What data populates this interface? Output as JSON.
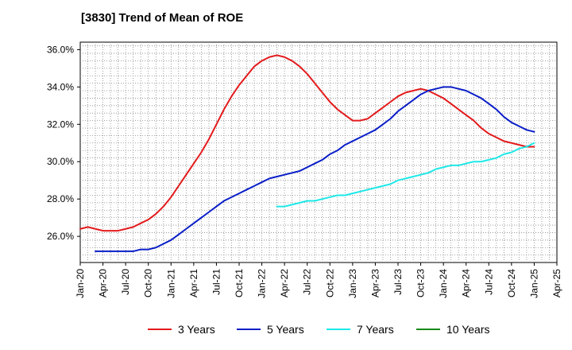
{
  "chart_data": {
    "type": "line",
    "title": "[3830]  Trend of Mean of ROE",
    "xlabel": "",
    "ylabel": "",
    "x_tick_labels": [
      "Jan-20",
      "Apr-20",
      "Jul-20",
      "Oct-20",
      "Jan-21",
      "Apr-21",
      "Jul-21",
      "Oct-21",
      "Jan-22",
      "Apr-22",
      "Jul-22",
      "Oct-22",
      "Jan-23",
      "Apr-23",
      "Jul-23",
      "Oct-23",
      "Jan-24",
      "Apr-24",
      "Jul-24",
      "Oct-24",
      "Jan-25",
      "Apr-25"
    ],
    "y_tick_labels": [
      "26.0%",
      "28.0%",
      "30.0%",
      "32.0%",
      "34.0%",
      "36.0%"
    ],
    "y_ticks": [
      26,
      28,
      30,
      32,
      34,
      36
    ],
    "ylim": [
      24.6,
      36.4
    ],
    "xlim": [
      "Jan-20",
      "Apr-25"
    ],
    "grid": true,
    "legend_position": "bottom",
    "series": [
      {
        "name": "3 Years",
        "color": "#e31a1c",
        "points": [
          [
            "Jan-20",
            26.4
          ],
          [
            "Feb-20",
            26.5
          ],
          [
            "Mar-20",
            26.4
          ],
          [
            "Apr-20",
            26.3
          ],
          [
            "May-20",
            26.3
          ],
          [
            "Jun-20",
            26.3
          ],
          [
            "Jul-20",
            26.4
          ],
          [
            "Aug-20",
            26.5
          ],
          [
            "Sep-20",
            26.7
          ],
          [
            "Oct-20",
            26.9
          ],
          [
            "Nov-20",
            27.2
          ],
          [
            "Dec-20",
            27.6
          ],
          [
            "Jan-21",
            28.1
          ],
          [
            "Feb-21",
            28.7
          ],
          [
            "Mar-21",
            29.3
          ],
          [
            "Apr-21",
            29.9
          ],
          [
            "May-21",
            30.5
          ],
          [
            "Jun-21",
            31.2
          ],
          [
            "Jul-21",
            32.0
          ],
          [
            "Aug-21",
            32.8
          ],
          [
            "Sep-21",
            33.5
          ],
          [
            "Oct-21",
            34.1
          ],
          [
            "Nov-21",
            34.6
          ],
          [
            "Dec-21",
            35.1
          ],
          [
            "Jan-22",
            35.4
          ],
          [
            "Feb-22",
            35.6
          ],
          [
            "Mar-22",
            35.7
          ],
          [
            "Apr-22",
            35.6
          ],
          [
            "May-22",
            35.4
          ],
          [
            "Jun-22",
            35.1
          ],
          [
            "Jul-22",
            34.7
          ],
          [
            "Aug-22",
            34.2
          ],
          [
            "Sep-22",
            33.7
          ],
          [
            "Oct-22",
            33.2
          ],
          [
            "Nov-22",
            32.8
          ],
          [
            "Dec-22",
            32.5
          ],
          [
            "Jan-23",
            32.2
          ],
          [
            "Feb-23",
            32.2
          ],
          [
            "Mar-23",
            32.3
          ],
          [
            "Apr-23",
            32.6
          ],
          [
            "May-23",
            32.9
          ],
          [
            "Jun-23",
            33.2
          ],
          [
            "Jul-23",
            33.5
          ],
          [
            "Aug-23",
            33.7
          ],
          [
            "Sep-23",
            33.8
          ],
          [
            "Oct-23",
            33.9
          ],
          [
            "Nov-23",
            33.8
          ],
          [
            "Dec-23",
            33.6
          ],
          [
            "Jan-24",
            33.4
          ],
          [
            "Feb-24",
            33.1
          ],
          [
            "Mar-24",
            32.8
          ],
          [
            "Apr-24",
            32.5
          ],
          [
            "May-24",
            32.2
          ],
          [
            "Jun-24",
            31.8
          ],
          [
            "Jul-24",
            31.5
          ],
          [
            "Aug-24",
            31.3
          ],
          [
            "Sep-24",
            31.1
          ],
          [
            "Oct-24",
            31.0
          ],
          [
            "Nov-24",
            30.9
          ],
          [
            "Dec-24",
            30.8
          ],
          [
            "Jan-25",
            30.8
          ]
        ]
      },
      {
        "name": "5 Years",
        "color": "#0a1ec8",
        "points": [
          [
            "Mar-20",
            25.2
          ],
          [
            "Apr-20",
            25.2
          ],
          [
            "May-20",
            25.2
          ],
          [
            "Jun-20",
            25.2
          ],
          [
            "Jul-20",
            25.2
          ],
          [
            "Aug-20",
            25.2
          ],
          [
            "Sep-20",
            25.3
          ],
          [
            "Oct-20",
            25.3
          ],
          [
            "Nov-20",
            25.4
          ],
          [
            "Dec-20",
            25.6
          ],
          [
            "Jan-21",
            25.8
          ],
          [
            "Feb-21",
            26.1
          ],
          [
            "Mar-21",
            26.4
          ],
          [
            "Apr-21",
            26.7
          ],
          [
            "May-21",
            27.0
          ],
          [
            "Jun-21",
            27.3
          ],
          [
            "Jul-21",
            27.6
          ],
          [
            "Aug-21",
            27.9
          ],
          [
            "Sep-21",
            28.1
          ],
          [
            "Oct-21",
            28.3
          ],
          [
            "Nov-21",
            28.5
          ],
          [
            "Dec-21",
            28.7
          ],
          [
            "Jan-22",
            28.9
          ],
          [
            "Feb-22",
            29.1
          ],
          [
            "Mar-22",
            29.2
          ],
          [
            "Apr-22",
            29.3
          ],
          [
            "May-22",
            29.4
          ],
          [
            "Jun-22",
            29.5
          ],
          [
            "Jul-22",
            29.7
          ],
          [
            "Aug-22",
            29.9
          ],
          [
            "Sep-22",
            30.1
          ],
          [
            "Oct-22",
            30.4
          ],
          [
            "Nov-22",
            30.6
          ],
          [
            "Dec-22",
            30.9
          ],
          [
            "Jan-23",
            31.1
          ],
          [
            "Feb-23",
            31.3
          ],
          [
            "Mar-23",
            31.5
          ],
          [
            "Apr-23",
            31.7
          ],
          [
            "May-23",
            32.0
          ],
          [
            "Jun-23",
            32.3
          ],
          [
            "Jul-23",
            32.7
          ],
          [
            "Aug-23",
            33.0
          ],
          [
            "Sep-23",
            33.3
          ],
          [
            "Oct-23",
            33.6
          ],
          [
            "Nov-23",
            33.8
          ],
          [
            "Dec-23",
            33.9
          ],
          [
            "Jan-24",
            34.0
          ],
          [
            "Feb-24",
            34.0
          ],
          [
            "Mar-24",
            33.9
          ],
          [
            "Apr-24",
            33.8
          ],
          [
            "May-24",
            33.6
          ],
          [
            "Jun-24",
            33.4
          ],
          [
            "Jul-24",
            33.1
          ],
          [
            "Aug-24",
            32.8
          ],
          [
            "Sep-24",
            32.4
          ],
          [
            "Oct-24",
            32.1
          ],
          [
            "Nov-24",
            31.9
          ],
          [
            "Dec-24",
            31.7
          ],
          [
            "Jan-25",
            31.6
          ]
        ]
      },
      {
        "name": "7 Years",
        "color": "#1ee8e8",
        "points": [
          [
            "Mar-22",
            27.6
          ],
          [
            "Apr-22",
            27.6
          ],
          [
            "May-22",
            27.7
          ],
          [
            "Jun-22",
            27.8
          ],
          [
            "Jul-22",
            27.9
          ],
          [
            "Aug-22",
            27.9
          ],
          [
            "Sep-22",
            28.0
          ],
          [
            "Oct-22",
            28.1
          ],
          [
            "Nov-22",
            28.2
          ],
          [
            "Dec-22",
            28.2
          ],
          [
            "Jan-23",
            28.3
          ],
          [
            "Feb-23",
            28.4
          ],
          [
            "Mar-23",
            28.5
          ],
          [
            "Apr-23",
            28.6
          ],
          [
            "May-23",
            28.7
          ],
          [
            "Jun-23",
            28.8
          ],
          [
            "Jul-23",
            29.0
          ],
          [
            "Aug-23",
            29.1
          ],
          [
            "Sep-23",
            29.2
          ],
          [
            "Oct-23",
            29.3
          ],
          [
            "Nov-23",
            29.4
          ],
          [
            "Dec-23",
            29.6
          ],
          [
            "Jan-24",
            29.7
          ],
          [
            "Feb-24",
            29.8
          ],
          [
            "Mar-24",
            29.8
          ],
          [
            "Apr-24",
            29.9
          ],
          [
            "May-24",
            30.0
          ],
          [
            "Jun-24",
            30.0
          ],
          [
            "Jul-24",
            30.1
          ],
          [
            "Aug-24",
            30.2
          ],
          [
            "Sep-24",
            30.4
          ],
          [
            "Oct-24",
            30.5
          ],
          [
            "Nov-24",
            30.7
          ],
          [
            "Dec-24",
            30.8
          ],
          [
            "Jan-25",
            31.0
          ]
        ]
      },
      {
        "name": "10 Years",
        "color": "#1a8a1a",
        "points": []
      }
    ]
  }
}
